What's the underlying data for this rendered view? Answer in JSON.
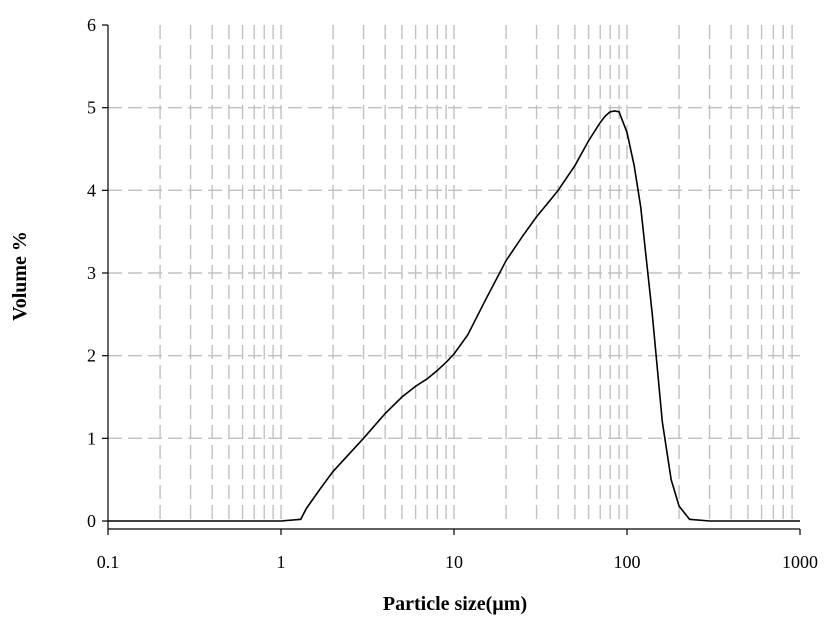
{
  "chart_data": {
    "type": "line",
    "title": "",
    "xlabel": "Particle size(µm)",
    "ylabel": "Volume %",
    "xscale": "log",
    "xlim": [
      0.1,
      1000
    ],
    "ylim": [
      0,
      6
    ],
    "xticks": [
      0.1,
      1,
      10,
      100,
      1000
    ],
    "xtick_labels": [
      "0.1",
      "1",
      "10",
      "100",
      "1000"
    ],
    "yticks": [
      0,
      1,
      2,
      3,
      4,
      5,
      6
    ],
    "ytick_labels": [
      "0",
      "1",
      "2",
      "3",
      "4",
      "5",
      "6"
    ],
    "grid": "on",
    "legend": "none",
    "series": [
      {
        "x": [
          0.1,
          0.5,
          1.0,
          1.3,
          1.4,
          1.7,
          2.0,
          2.5,
          3.0,
          4.0,
          5.0,
          6.0,
          7.0,
          8.0,
          9.0,
          10.0,
          12.0,
          15.0,
          20.0,
          25.0,
          30.0,
          35.0,
          40.0,
          50.0,
          60.0,
          70.0,
          75.0,
          80.0,
          85.0,
          90.0,
          100.0,
          110.0,
          120.0,
          140.0,
          160.0,
          180.0,
          200.0,
          230.0,
          300.0,
          500.0,
          1000.0
        ],
        "y": [
          0.0,
          0.0,
          0.0,
          0.02,
          0.15,
          0.4,
          0.6,
          0.82,
          1.0,
          1.3,
          1.5,
          1.63,
          1.72,
          1.82,
          1.92,
          2.02,
          2.25,
          2.65,
          3.15,
          3.45,
          3.68,
          3.85,
          4.0,
          4.3,
          4.6,
          4.82,
          4.9,
          4.95,
          4.96,
          4.95,
          4.7,
          4.3,
          3.8,
          2.5,
          1.2,
          0.5,
          0.18,
          0.02,
          0.0,
          0.0,
          0.0
        ]
      }
    ]
  }
}
